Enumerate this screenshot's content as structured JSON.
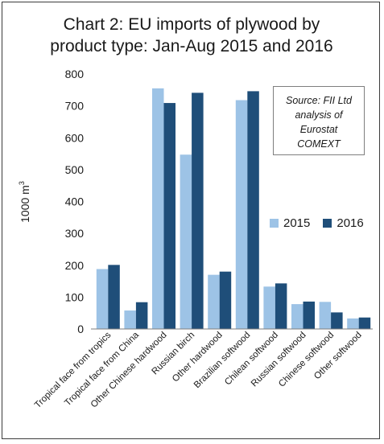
{
  "chart_data": {
    "type": "bar",
    "title_line1": "Chart 2: EU imports of plywood by",
    "title_line2": "product type: Jan-Aug 2015 and 2016",
    "ylabel": "1000 m",
    "ylabel_sup": "3",
    "ylim": [
      0,
      800
    ],
    "yticks": [
      0,
      100,
      200,
      300,
      400,
      500,
      600,
      700,
      800
    ],
    "categories": [
      "Tropical face from tropics",
      "Tropical face from China",
      "Other Chinese hardwood",
      "Russian birch",
      "Other hardwood",
      "Brazilian softwood",
      "Chilean softwood",
      "Russian softwood",
      "Chinese softwood",
      "Other softwood"
    ],
    "series": [
      {
        "name": "2015",
        "color": "#9dc3e6",
        "values": [
          188,
          58,
          755,
          547,
          170,
          718,
          133,
          78,
          85,
          33
        ]
      },
      {
        "name": "2016",
        "color": "#1f4e79",
        "values": [
          201,
          84,
          709,
          741,
          180,
          746,
          143,
          86,
          52,
          36
        ]
      }
    ],
    "legend_position": "right",
    "grid": false,
    "source_lines": [
      "Source: FII Ltd",
      "analysis of",
      "Eurostat",
      "COMEXT"
    ]
  }
}
